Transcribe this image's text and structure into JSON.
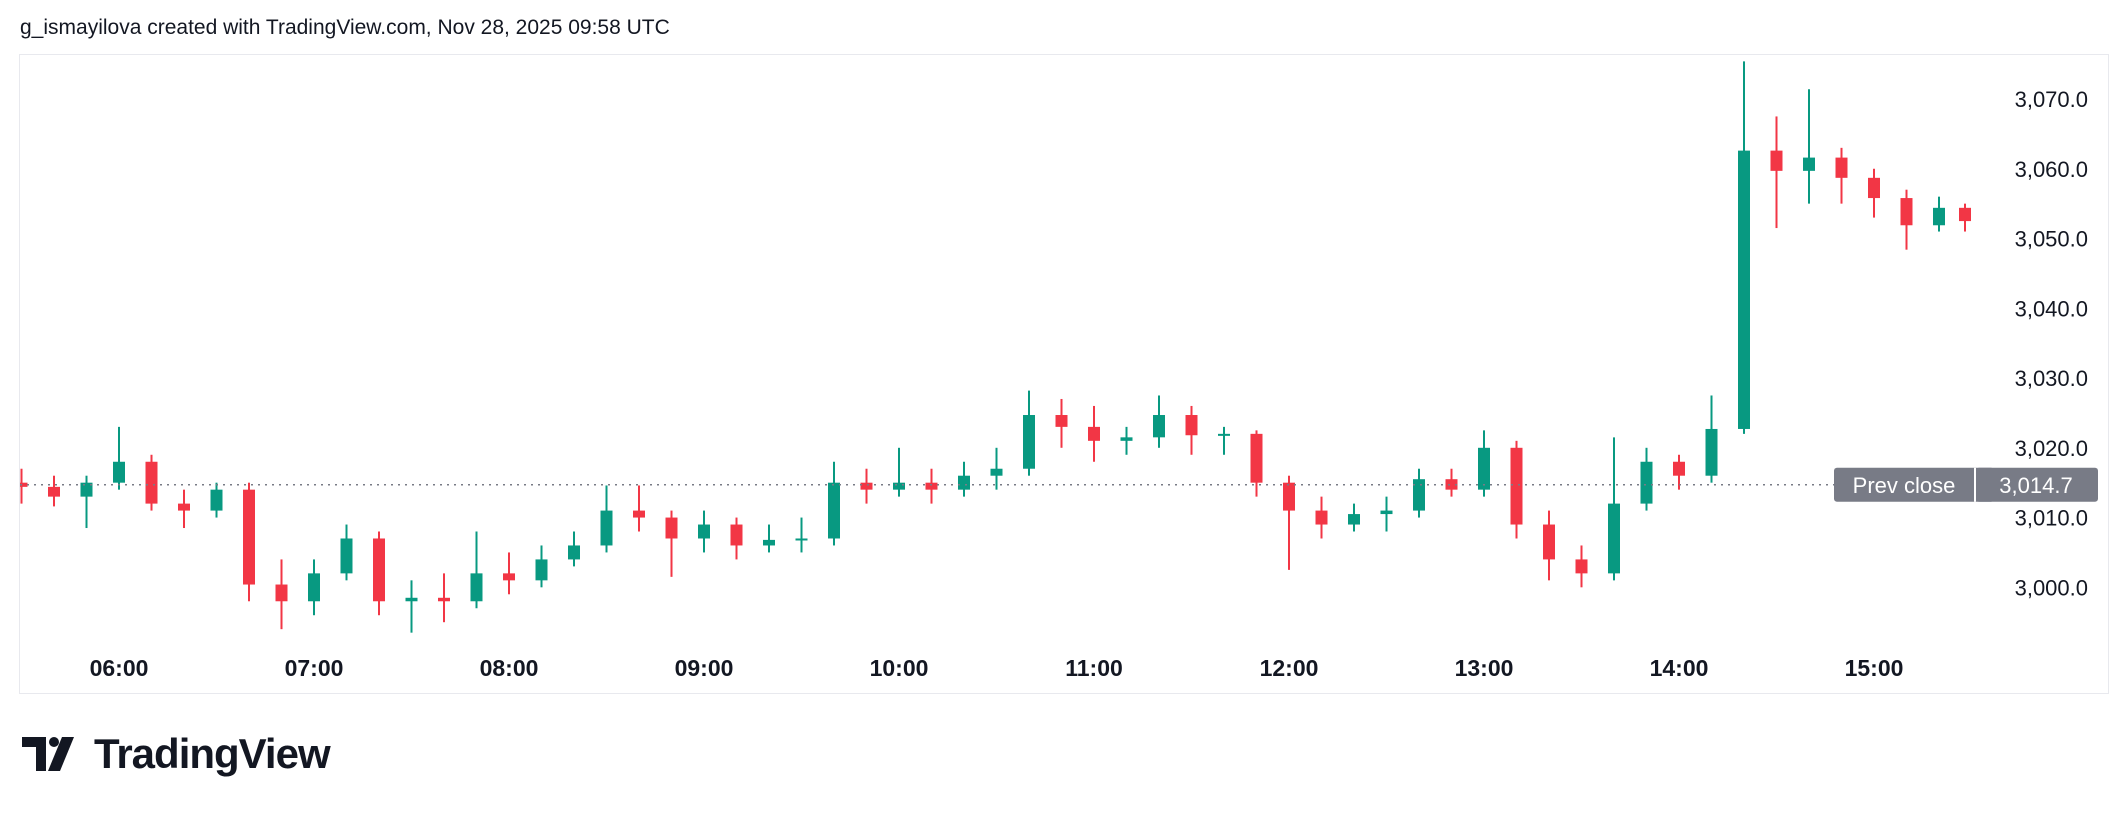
{
  "header": {
    "attribution": "g_ismayilova created with TradingView.com, Nov 28, 2025 09:58 UTC"
  },
  "footer": {
    "logo_text": "TradingView"
  },
  "colors": {
    "up": "#089981",
    "down": "#f23645",
    "prev_close_line": "#787b86",
    "label_bg": "#787b86"
  },
  "chart_data": {
    "type": "candlestick",
    "title": "",
    "x_ticks": [
      "06:00",
      "07:00",
      "08:00",
      "09:00",
      "10:00",
      "11:00",
      "12:00",
      "13:00",
      "14:00",
      "15:00"
    ],
    "y_ticks": [
      "3,000.0",
      "3,010.0",
      "3,020.0",
      "3,030.0",
      "3,040.0",
      "3,050.0",
      "3,060.0",
      "3,070.0"
    ],
    "ylim": [
      2993,
      3075.4
    ],
    "grid": false,
    "prev_close": {
      "label": "Prev close",
      "value": 3014.7,
      "value_label": "3,014.7"
    },
    "columns": [
      "time",
      "open",
      "high",
      "low",
      "close"
    ],
    "candles": [
      [
        "05:30",
        3015.0,
        3017,
        3012,
        3014.4
      ],
      [
        "05:40",
        3014.4,
        3016,
        3011.6,
        3013
      ],
      [
        "05:50",
        3013,
        3016,
        3008.5,
        3015
      ],
      [
        "06:00",
        3015,
        3023,
        3014,
        3018
      ],
      [
        "06:10",
        3018,
        3019,
        3011,
        3012
      ],
      [
        "06:20",
        3012,
        3014,
        3008.5,
        3011
      ],
      [
        "06:30",
        3011,
        3015,
        3010,
        3014
      ],
      [
        "06:40",
        3014,
        3015,
        2998,
        3000.4
      ],
      [
        "06:50",
        3000.4,
        3004,
        2994,
        2998
      ],
      [
        "07:00",
        2998,
        3004,
        2996,
        3002
      ],
      [
        "07:10",
        3002,
        3009,
        3001,
        3007
      ],
      [
        "07:20",
        3007,
        3008,
        2996,
        2998
      ],
      [
        "07:30",
        2998,
        3001,
        2993.5,
        2998.5
      ],
      [
        "07:40",
        2998.5,
        3002,
        2995,
        2998
      ],
      [
        "07:50",
        2998,
        3008,
        2997,
        3002
      ],
      [
        "08:00",
        3002,
        3005,
        2999,
        3001
      ],
      [
        "08:10",
        3001,
        3006,
        3000,
        3004
      ],
      [
        "08:20",
        3004,
        3008,
        3003,
        3006
      ],
      [
        "08:30",
        3006,
        3014.6,
        3005,
        3011
      ],
      [
        "08:40",
        3011,
        3014.6,
        3008,
        3010
      ],
      [
        "08:50",
        3010,
        3011,
        3001.5,
        3007
      ],
      [
        "09:00",
        3007,
        3011,
        3005,
        3009
      ],
      [
        "09:10",
        3009,
        3010,
        3004,
        3006
      ],
      [
        "09:20",
        3006,
        3009,
        3005,
        3006.8
      ],
      [
        "09:30",
        3006.8,
        3010,
        3005,
        3007
      ],
      [
        "09:40",
        3007,
        3018,
        3006,
        3015
      ],
      [
        "09:50",
        3015,
        3017,
        3012,
        3014
      ],
      [
        "10:00",
        3014,
        3020,
        3013,
        3015
      ],
      [
        "10:10",
        3015,
        3017,
        3012,
        3014
      ],
      [
        "10:20",
        3014,
        3018,
        3013,
        3016
      ],
      [
        "10:30",
        3016,
        3020,
        3014,
        3017
      ],
      [
        "10:40",
        3017,
        3028.2,
        3016,
        3024.7
      ],
      [
        "10:50",
        3024.7,
        3027,
        3020,
        3023
      ],
      [
        "11:00",
        3023,
        3026,
        3018,
        3021
      ],
      [
        "11:10",
        3021,
        3023,
        3019,
        3021.5
      ],
      [
        "11:20",
        3021.5,
        3027.5,
        3020,
        3024.7
      ],
      [
        "11:30",
        3024.7,
        3026,
        3019,
        3021.8
      ],
      [
        "11:40",
        3021.8,
        3023,
        3019,
        3022
      ],
      [
        "11:50",
        3022,
        3022.5,
        3013,
        3015
      ],
      [
        "12:00",
        3015,
        3016,
        3002.5,
        3011
      ],
      [
        "12:10",
        3011,
        3013,
        3007,
        3009
      ],
      [
        "12:20",
        3009,
        3012,
        3008,
        3010.5
      ],
      [
        "12:30",
        3010.5,
        3013,
        3008,
        3011
      ],
      [
        "12:40",
        3011,
        3017,
        3010,
        3015.5
      ],
      [
        "12:50",
        3015.5,
        3017,
        3013,
        3014
      ],
      [
        "13:00",
        3014,
        3022.5,
        3013,
        3020
      ],
      [
        "13:10",
        3020,
        3021,
        3007,
        3009
      ],
      [
        "13:20",
        3009,
        3011,
        3001,
        3004
      ],
      [
        "13:30",
        3004,
        3006,
        3000,
        3002
      ],
      [
        "13:40",
        3002,
        3021.5,
        3001,
        3012
      ],
      [
        "13:50",
        3012,
        3020,
        3011,
        3018
      ],
      [
        "14:00",
        3018,
        3019,
        3014,
        3016
      ],
      [
        "14:10",
        3016,
        3027.5,
        3015,
        3022.7
      ],
      [
        "14:20",
        3022.7,
        3075.4,
        3022,
        3062.6
      ],
      [
        "14:30",
        3062.6,
        3067.5,
        3051.5,
        3059.7
      ],
      [
        "14:40",
        3059.7,
        3071.4,
        3055,
        3061.6
      ],
      [
        "14:50",
        3061.6,
        3063,
        3055,
        3058.7
      ],
      [
        "15:00",
        3058.7,
        3060,
        3053,
        3055.8
      ],
      [
        "15:10",
        3055.8,
        3057,
        3048.4,
        3051.9
      ],
      [
        "15:20",
        3051.9,
        3056,
        3051,
        3054.4
      ],
      [
        "15:28",
        3054.4,
        3055,
        3051,
        3052.5
      ]
    ]
  }
}
